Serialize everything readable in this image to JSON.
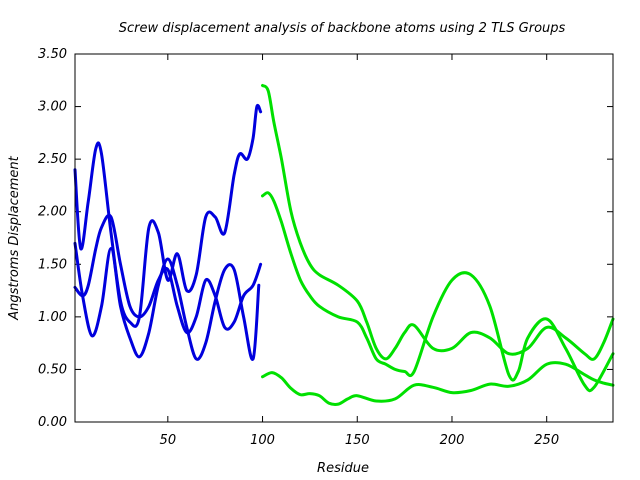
{
  "chart_data": {
    "type": "line",
    "title": "Screw displacement analysis of backbone atoms using 2 TLS Groups",
    "xlabel": "Residue",
    "ylabel": "Angstroms Displacement",
    "xlim": [
      1,
      285
    ],
    "ylim": [
      0,
      3.5
    ],
    "x_ticks": [
      50,
      100,
      150,
      200,
      250
    ],
    "y_ticks": [
      "0.00",
      "0.50",
      "1.00",
      "1.50",
      "2.00",
      "2.50",
      "3.00",
      "3.50"
    ],
    "y_tick_values": [
      0,
      0.5,
      1.0,
      1.5,
      2.0,
      2.5,
      3.0,
      3.5
    ],
    "grid": false,
    "colors": {
      "group1": "#0000dd",
      "group2": "#00e000"
    },
    "series": [
      {
        "group": "group1",
        "color": "#0000dd",
        "x": [
          1,
          5,
          10,
          15,
          20,
          25,
          30,
          35,
          40,
          45,
          50,
          55,
          60,
          65,
          70,
          75,
          80,
          85,
          90,
          95,
          98
        ],
        "values": [
          1.7,
          1.2,
          0.82,
          1.1,
          1.65,
          1.1,
          0.8,
          0.62,
          0.85,
          1.3,
          1.55,
          1.3,
          0.9,
          0.6,
          0.75,
          1.15,
          1.45,
          1.45,
          1.0,
          0.6,
          1.3
        ]
      },
      {
        "group": "group1",
        "color": "#0000dd",
        "x": [
          1,
          5,
          8,
          12,
          15,
          20,
          25,
          30,
          35,
          40,
          45,
          50,
          55,
          60,
          65,
          70,
          75,
          80,
          85,
          90,
          95,
          99
        ],
        "values": [
          1.28,
          1.2,
          1.3,
          1.65,
          1.85,
          1.95,
          1.5,
          1.1,
          1.0,
          1.1,
          1.35,
          1.45,
          1.1,
          0.85,
          1.0,
          1.35,
          1.2,
          0.9,
          0.95,
          1.2,
          1.3,
          1.5
        ]
      },
      {
        "group": "group1",
        "color": "#0000dd",
        "x": [
          1,
          4,
          8,
          12,
          15,
          20,
          25,
          30,
          35,
          40,
          45,
          50,
          55,
          60,
          65,
          70,
          75,
          80,
          85,
          88,
          92,
          95,
          97,
          99
        ],
        "values": [
          2.4,
          1.65,
          2.1,
          2.6,
          2.55,
          1.8,
          1.15,
          0.95,
          1.0,
          1.85,
          1.8,
          1.35,
          1.6,
          1.25,
          1.4,
          1.95,
          1.95,
          1.8,
          2.35,
          2.55,
          2.5,
          2.7,
          3.0,
          2.95
        ]
      },
      {
        "group": "group2",
        "color": "#00e000",
        "x": [
          100,
          103,
          106,
          110,
          115,
          120,
          125,
          130,
          140,
          150,
          155,
          160,
          165,
          170,
          175,
          180,
          190,
          200,
          210,
          220,
          230,
          240,
          250,
          260,
          270,
          275,
          280,
          285
        ],
        "values": [
          3.2,
          3.15,
          2.85,
          2.5,
          2.0,
          1.7,
          1.5,
          1.4,
          1.3,
          1.15,
          0.95,
          0.7,
          0.6,
          0.7,
          0.85,
          0.92,
          0.7,
          0.7,
          0.85,
          0.8,
          0.65,
          0.7,
          0.9,
          0.8,
          0.65,
          0.6,
          0.75,
          0.98
        ]
      },
      {
        "group": "group2",
        "color": "#00e000",
        "x": [
          100,
          103,
          106,
          110,
          115,
          120,
          125,
          130,
          140,
          150,
          155,
          160,
          165,
          170,
          175,
          180,
          190,
          200,
          210,
          220,
          230,
          235,
          240,
          250,
          260,
          270,
          275,
          285
        ],
        "values": [
          2.15,
          2.18,
          2.1,
          1.9,
          1.6,
          1.35,
          1.2,
          1.1,
          1.0,
          0.95,
          0.8,
          0.6,
          0.55,
          0.5,
          0.48,
          0.48,
          1.0,
          1.35,
          1.4,
          1.1,
          0.45,
          0.48,
          0.8,
          0.98,
          0.7,
          0.35,
          0.33,
          0.65
        ]
      },
      {
        "group": "group2",
        "color": "#00e000",
        "x": [
          100,
          105,
          110,
          115,
          120,
          125,
          130,
          135,
          140,
          145,
          150,
          160,
          170,
          180,
          190,
          200,
          210,
          220,
          230,
          240,
          250,
          260,
          270,
          275,
          280,
          285
        ],
        "values": [
          0.43,
          0.47,
          0.42,
          0.32,
          0.26,
          0.27,
          0.25,
          0.18,
          0.17,
          0.22,
          0.25,
          0.2,
          0.22,
          0.35,
          0.33,
          0.28,
          0.3,
          0.36,
          0.34,
          0.4,
          0.55,
          0.55,
          0.45,
          0.4,
          0.37,
          0.35
        ]
      }
    ]
  }
}
